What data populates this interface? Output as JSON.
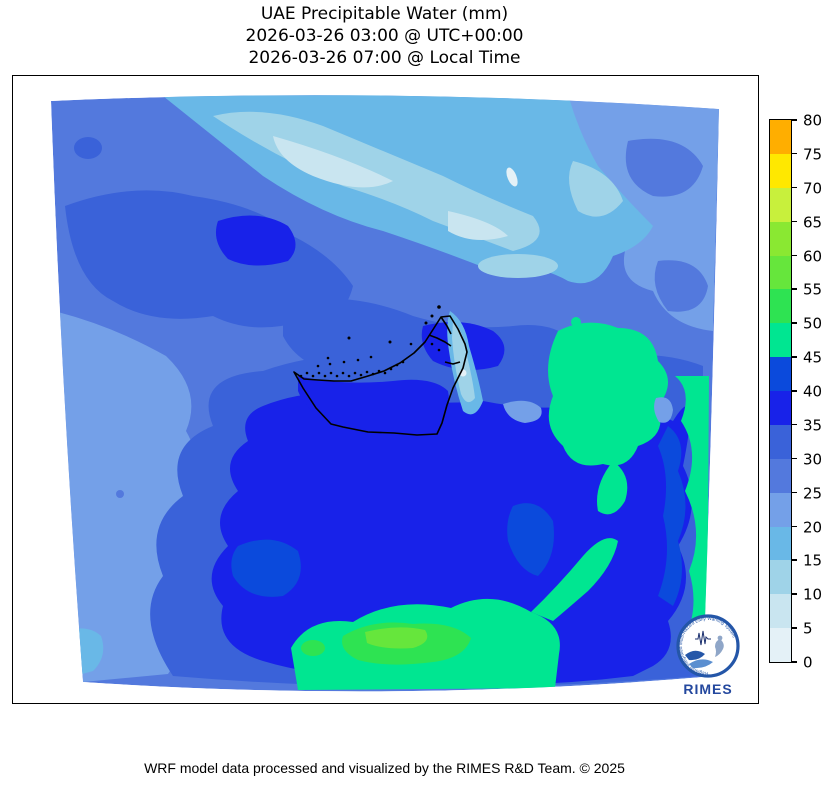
{
  "title": {
    "line1": "UAE Precipitable Water (mm)",
    "line2": "2026-03-26 03:00 @ UTC+00:00",
    "line3": "2026-03-26 07:00 @ Local Time"
  },
  "footer": {
    "credit": "WRF model data processed and visualized by the RIMES R&D Team. © 2025"
  },
  "colorbar": {
    "min": 0,
    "max": 80,
    "tick_step": 5,
    "ticks": [
      0,
      5,
      10,
      15,
      20,
      25,
      30,
      35,
      40,
      45,
      50,
      55,
      60,
      65,
      70,
      75,
      80
    ],
    "colors": [
      "#E4F1F7",
      "#C9E5F0",
      "#9FD3E8",
      "#69B8E7",
      "#74A0E8",
      "#5379DD",
      "#3A62D9",
      "#1822E9",
      "#0B4ADC",
      "#00E691",
      "#2EE352",
      "#66E63C",
      "#8AE832",
      "#C8F03C",
      "#FFE800",
      "#FFAE00"
    ]
  },
  "map": {
    "type": "filled-contour",
    "variable": "precipitable water",
    "units": "mm",
    "contour_interval_mm": 5,
    "range_shown_mm": [
      0,
      80
    ],
    "overlay": "UAE coastline, islands and administrative boundary in black",
    "notable_features": {
      "northwest_swath": "light blues 5-20 mm",
      "dominant_field": "blues 25-45 mm",
      "green_maxima": "45-60 mm patches east and south of UAE"
    }
  },
  "logo": {
    "acronym": "RIMES",
    "ring_text": "Regional Integrated Multi-Hazard Early Warning System"
  }
}
